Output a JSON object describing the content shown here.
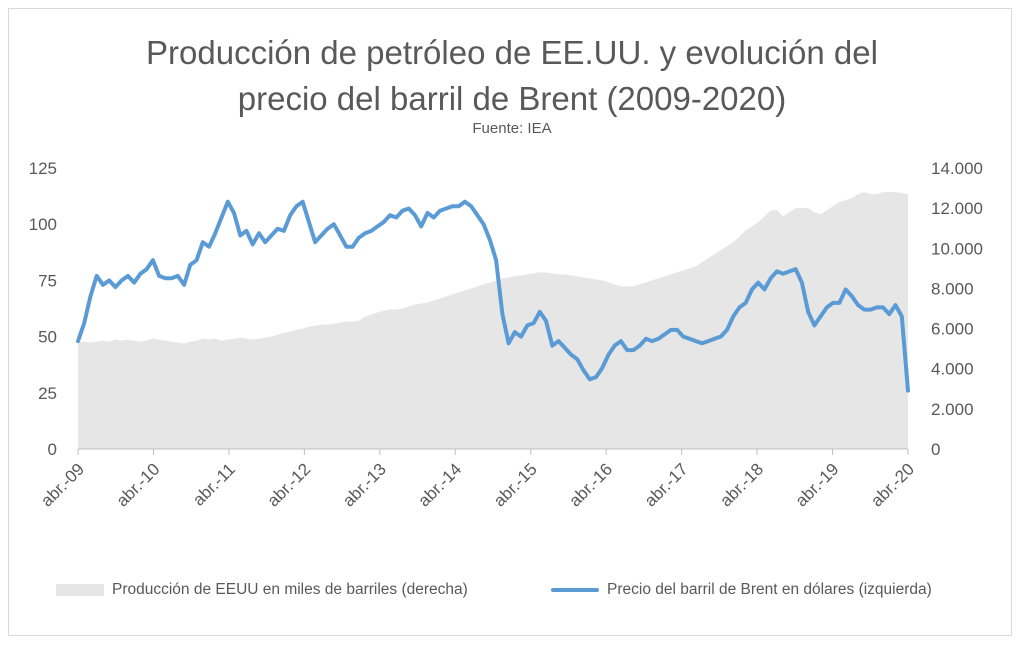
{
  "chart_data": {
    "type": "line",
    "title_lines": [
      "Producción de petróleo de EE.UU. y evolución del",
      "precio del barril de Brent (2009-2020)"
    ],
    "subtitle": "Fuente: IEA",
    "x_labels": [
      "abr.-09",
      "abr.-10",
      "abr.-11",
      "abr.-12",
      "abr.-13",
      "abr.-14",
      "abr.-15",
      "abr.-16",
      "abr.-17",
      "abr.-18",
      "abr.-19",
      "abr.-20"
    ],
    "y_left": {
      "ylim": [
        0,
        125
      ],
      "ticks": [
        "0",
        "25",
        "50",
        "75",
        "100",
        "125"
      ]
    },
    "y_right": {
      "ylim": [
        0,
        14000
      ],
      "ticks": [
        "0",
        "2.000",
        "4.000",
        "6.000",
        "8.000",
        "10.000",
        "12.000",
        "14.000"
      ]
    },
    "colors": {
      "area": "#e6e6e6",
      "line": "#5b9bd5",
      "text": "#595959"
    },
    "series": [
      {
        "name": "Producción de EEUU en miles de barriles (derecha)",
        "axis": "right",
        "kind": "area",
        "x": [
          0,
          1,
          2,
          3,
          4,
          5,
          6,
          7,
          8,
          9,
          10,
          11,
          12,
          13,
          14,
          15,
          16,
          17,
          18,
          19,
          20,
          21,
          22,
          23,
          24,
          25,
          26,
          27,
          28,
          29,
          30,
          31,
          32,
          33,
          34,
          35,
          36,
          37,
          38,
          39,
          40,
          41,
          42,
          43,
          44,
          45,
          46,
          47,
          48,
          49,
          50,
          51,
          52,
          53,
          54,
          55,
          56,
          57,
          58,
          59,
          60,
          61,
          62,
          63,
          64,
          65,
          66,
          67,
          68,
          69,
          70,
          71,
          72,
          73,
          74,
          75,
          76,
          77,
          78,
          79,
          80,
          81,
          82,
          83,
          84,
          85,
          86,
          87,
          88,
          89,
          90,
          91,
          92,
          93,
          94,
          95,
          96,
          97,
          98,
          99,
          100,
          101,
          102,
          103,
          104,
          105,
          106,
          107,
          108,
          109,
          110,
          111,
          112,
          113,
          114,
          115,
          116,
          117,
          118,
          119,
          120,
          121,
          122,
          123,
          124,
          125,
          126,
          127,
          128,
          129,
          130,
          131,
          132,
          133
        ],
        "values": [
          5300,
          5350,
          5300,
          5350,
          5400,
          5350,
          5450,
          5400,
          5450,
          5400,
          5350,
          5400,
          5500,
          5450,
          5400,
          5350,
          5300,
          5250,
          5350,
          5400,
          5500,
          5450,
          5500,
          5400,
          5450,
          5500,
          5550,
          5500,
          5450,
          5500,
          5550,
          5600,
          5700,
          5800,
          5850,
          5950,
          6000,
          6100,
          6150,
          6200,
          6200,
          6250,
          6300,
          6350,
          6350,
          6400,
          6600,
          6700,
          6800,
          6900,
          6950,
          6950,
          7000,
          7100,
          7200,
          7250,
          7300,
          7400,
          7500,
          7600,
          7700,
          7800,
          7900,
          8000,
          8100,
          8200,
          8300,
          8400,
          8500,
          8550,
          8600,
          8650,
          8700,
          8750,
          8800,
          8800,
          8750,
          8700,
          8700,
          8650,
          8600,
          8550,
          8500,
          8450,
          8400,
          8300,
          8200,
          8100,
          8100,
          8100,
          8200,
          8300,
          8400,
          8500,
          8600,
          8700,
          8800,
          8900,
          9000,
          9100,
          9300,
          9500,
          9700,
          9900,
          10100,
          10300,
          10600,
          10900,
          11100,
          11300,
          11600,
          11900,
          11900,
          11600,
          11800,
          12000,
          12000,
          12000,
          11800,
          11700,
          11900,
          12100,
          12300,
          12400,
          12500,
          12700,
          12800,
          12700,
          12700,
          12800,
          12800,
          12800,
          12750,
          12700
        ]
      },
      {
        "name": "Precio del barril de Brent en dólares (izquierda)",
        "axis": "left",
        "kind": "line",
        "x": [
          0,
          1,
          2,
          3,
          4,
          5,
          6,
          7,
          8,
          9,
          10,
          11,
          12,
          13,
          14,
          15,
          16,
          17,
          18,
          19,
          20,
          21,
          22,
          23,
          24,
          25,
          26,
          27,
          28,
          29,
          30,
          31,
          32,
          33,
          34,
          35,
          36,
          37,
          38,
          39,
          40,
          41,
          42,
          43,
          44,
          45,
          46,
          47,
          48,
          49,
          50,
          51,
          52,
          53,
          54,
          55,
          56,
          57,
          58,
          59,
          60,
          61,
          62,
          63,
          64,
          65,
          66,
          67,
          68,
          69,
          70,
          71,
          72,
          73,
          74,
          75,
          76,
          77,
          78,
          79,
          80,
          81,
          82,
          83,
          84,
          85,
          86,
          87,
          88,
          89,
          90,
          91,
          92,
          93,
          94,
          95,
          96,
          97,
          98,
          99,
          100,
          101,
          102,
          103,
          104,
          105,
          106,
          107,
          108,
          109,
          110,
          111,
          112,
          113,
          114,
          115,
          116,
          117,
          118,
          119,
          120,
          121,
          122,
          123,
          124,
          125,
          126,
          127,
          128,
          129,
          130,
          131,
          132,
          133
        ],
        "values": [
          48,
          56,
          68,
          77,
          73,
          75,
          72,
          75,
          77,
          74,
          78,
          80,
          84,
          77,
          76,
          76,
          77,
          73,
          82,
          84,
          92,
          90,
          96,
          103,
          110,
          105,
          95,
          97,
          91,
          96,
          92,
          95,
          98,
          97,
          104,
          108,
          110,
          101,
          92,
          95,
          98,
          100,
          95,
          90,
          90,
          94,
          96,
          97,
          99,
          101,
          104,
          103,
          106,
          107,
          104,
          99,
          105,
          103,
          106,
          107,
          108,
          108,
          110,
          108,
          104,
          100,
          93,
          84,
          60,
          47,
          52,
          50,
          55,
          56,
          61,
          57,
          46,
          48,
          45,
          42,
          40,
          35,
          31,
          32,
          36,
          42,
          46,
          48,
          44,
          44,
          46,
          49,
          48,
          49,
          51,
          53,
          53,
          50,
          49,
          48,
          47,
          48,
          49,
          50,
          53,
          59,
          63,
          65,
          71,
          74,
          71,
          76,
          79,
          78,
          79,
          80,
          74,
          61,
          55,
          59,
          63,
          65,
          65,
          71,
          68,
          64,
          62,
          62,
          63,
          63,
          60,
          64,
          59,
          26
        ]
      }
    ]
  }
}
